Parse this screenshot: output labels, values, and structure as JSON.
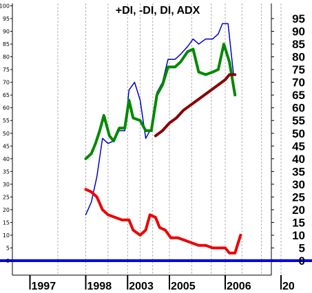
{
  "chart_data": {
    "type": "line",
    "title": "+DI, -DI, DI, ADX",
    "xlabel": "",
    "ylabel": "",
    "ylim": [
      -6,
      101
    ],
    "grid": "vertical",
    "y_ticks_left": [
      0,
      5,
      10,
      15,
      20,
      25,
      30,
      35,
      40,
      45,
      50,
      55,
      60,
      65,
      70,
      75,
      80,
      85,
      90,
      95,
      100
    ],
    "y_ticks_right": [
      0,
      5,
      10,
      15,
      20,
      25,
      30,
      35,
      40,
      45,
      50,
      55,
      60,
      65,
      70,
      75,
      80,
      85,
      90,
      95
    ],
    "x_tick_labels": [
      {
        "label": "1997",
        "t": 0.0
      },
      {
        "label": "1998",
        "t": 2.0
      },
      {
        "label": "2003",
        "t": 3.5
      },
      {
        "label": "2005",
        "t": 5.0
      },
      {
        "label": "2006",
        "t": 7.0
      },
      {
        "label": "20",
        "t": 9.0
      }
    ],
    "gridlines_t": [
      1.0,
      2.0,
      2.8,
      3.5,
      3.95,
      4.4,
      5.0,
      5.8,
      6.5,
      7.0,
      7.6,
      8.3,
      9.0
    ],
    "series": [
      {
        "color": "#0000cc",
        "width": 1.5,
        "points": [
          [
            2.0,
            18
          ],
          [
            2.2,
            23
          ],
          [
            2.4,
            33
          ],
          [
            2.6,
            48
          ],
          [
            2.8,
            46
          ],
          [
            3.0,
            47
          ],
          [
            3.2,
            51
          ],
          [
            3.4,
            51
          ],
          [
            3.55,
            67
          ],
          [
            3.75,
            70
          ],
          [
            3.95,
            63
          ],
          [
            4.15,
            48
          ],
          [
            4.35,
            52
          ],
          [
            4.55,
            66
          ],
          [
            4.75,
            70
          ],
          [
            4.95,
            79
          ],
          [
            5.2,
            79
          ],
          [
            5.4,
            81
          ],
          [
            5.65,
            84
          ],
          [
            5.85,
            87
          ],
          [
            6.05,
            85
          ],
          [
            6.3,
            87
          ],
          [
            6.55,
            87
          ],
          [
            6.75,
            89
          ],
          [
            6.9,
            93
          ],
          [
            7.1,
            93
          ],
          [
            7.3,
            73
          ]
        ]
      },
      {
        "color": "#008800",
        "width": 4,
        "points": [
          [
            2.0,
            40
          ],
          [
            2.2,
            42
          ],
          [
            2.35,
            46
          ],
          [
            2.5,
            51
          ],
          [
            2.65,
            57
          ],
          [
            2.85,
            49
          ],
          [
            3.0,
            47
          ],
          [
            3.2,
            52
          ],
          [
            3.4,
            52
          ],
          [
            3.55,
            63
          ],
          [
            3.7,
            56
          ],
          [
            3.95,
            55
          ],
          [
            4.15,
            51
          ],
          [
            4.35,
            51
          ],
          [
            4.55,
            65
          ],
          [
            4.75,
            69
          ],
          [
            4.95,
            76
          ],
          [
            5.2,
            76
          ],
          [
            5.4,
            78
          ],
          [
            5.65,
            82
          ],
          [
            5.85,
            83
          ],
          [
            6.05,
            74
          ],
          [
            6.3,
            73
          ],
          [
            6.55,
            74
          ],
          [
            6.75,
            75
          ],
          [
            6.95,
            85
          ],
          [
            7.15,
            78
          ],
          [
            7.35,
            65
          ]
        ]
      },
      {
        "color": "#880000",
        "width": 4,
        "points": [
          [
            4.5,
            49
          ],
          [
            4.75,
            51
          ],
          [
            5.0,
            54
          ],
          [
            5.25,
            56
          ],
          [
            5.5,
            59
          ],
          [
            5.75,
            61
          ],
          [
            6.0,
            63
          ],
          [
            6.25,
            65
          ],
          [
            6.5,
            67
          ],
          [
            6.75,
            69
          ],
          [
            7.0,
            71
          ],
          [
            7.15,
            73
          ],
          [
            7.35,
            73
          ]
        ]
      },
      {
        "color": "#ee0000",
        "width": 4,
        "points": [
          [
            2.0,
            28
          ],
          [
            2.2,
            27
          ],
          [
            2.4,
            25
          ],
          [
            2.6,
            20
          ],
          [
            2.8,
            18
          ],
          [
            3.05,
            17
          ],
          [
            3.3,
            16
          ],
          [
            3.55,
            16
          ],
          [
            3.7,
            12
          ],
          [
            3.95,
            10
          ],
          [
            4.15,
            12
          ],
          [
            4.3,
            18
          ],
          [
            4.5,
            17
          ],
          [
            4.65,
            13
          ],
          [
            4.85,
            12
          ],
          [
            5.05,
            9
          ],
          [
            5.3,
            9
          ],
          [
            5.55,
            8
          ],
          [
            5.8,
            7
          ],
          [
            6.05,
            6
          ],
          [
            6.3,
            6
          ],
          [
            6.55,
            5
          ],
          [
            6.8,
            5
          ],
          [
            7.0,
            5
          ],
          [
            7.15,
            3
          ],
          [
            7.35,
            3
          ],
          [
            7.55,
            10
          ]
        ]
      },
      {
        "color": "#0000ee",
        "width": 4,
        "points": [
          [
            -3.0,
            0
          ],
          [
            11.0,
            0
          ]
        ]
      }
    ]
  }
}
